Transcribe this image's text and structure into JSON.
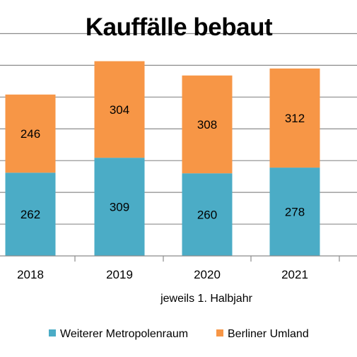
{
  "chart_data": {
    "type": "bar",
    "stacked": true,
    "title": "Kauffälle bebaut",
    "xlabel": "jeweils 1. Halbjahr",
    "ylabel": "",
    "categories": [
      "2018",
      "2019",
      "2020",
      "2021"
    ],
    "series": [
      {
        "name": "Weiterer Metropolenraum",
        "values": [
          262,
          309,
          260,
          278
        ],
        "color": "#4bacc6"
      },
      {
        "name": "Berliner Umland",
        "values": [
          246,
          304,
          308,
          312
        ],
        "color": "#f79646"
      }
    ],
    "ylim": [
      0,
      750
    ],
    "grid": true,
    "legend": "bottom"
  }
}
